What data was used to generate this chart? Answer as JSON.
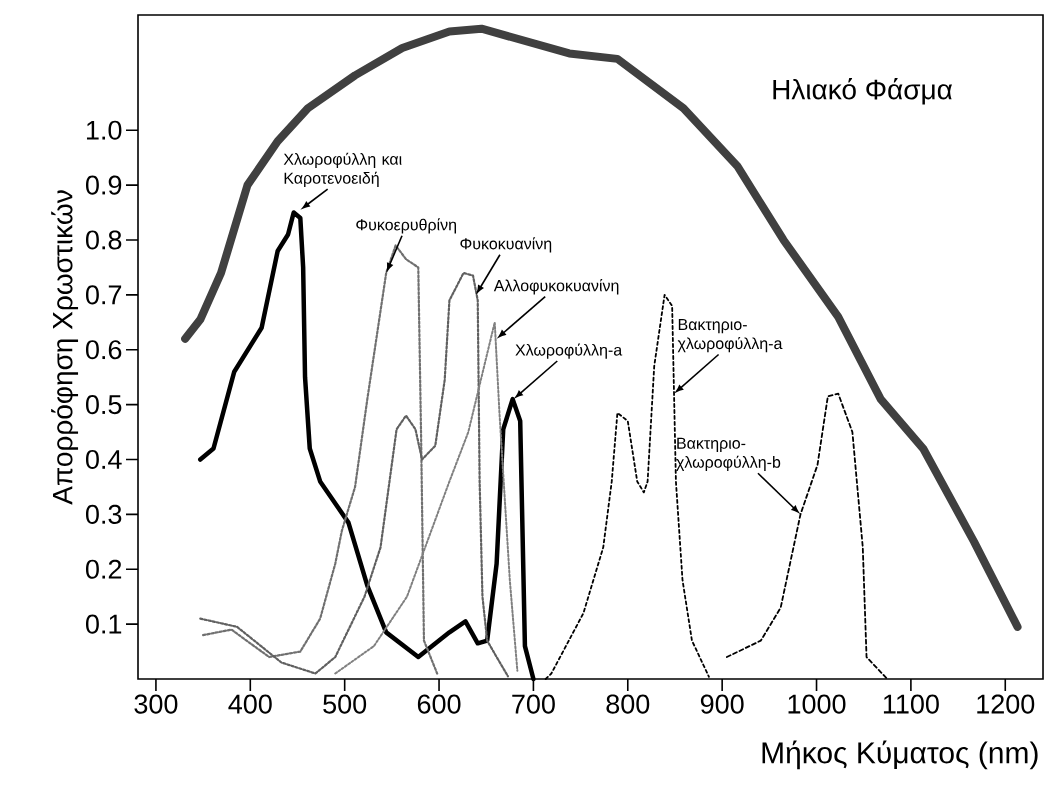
{
  "chart_data": {
    "type": "line",
    "xlabel": "Μήκος Κύματος (nm)",
    "ylabel": "Απορρόφηση Χρωστικών",
    "xlim": [
      281,
      1240
    ],
    "ylim": [
      0,
      1.21
    ],
    "xticks": [
      300,
      400,
      500,
      600,
      700,
      800,
      900,
      1000,
      1100,
      1200
    ],
    "yticks": [
      0.1,
      0.2,
      0.3,
      0.4,
      0.5,
      0.6,
      0.7,
      0.8,
      0.9,
      {
        "value": 1.0,
        "label": "1.0"
      }
    ],
    "series": [
      {
        "color": "#404040",
        "line_style": "solid",
        "x": [
          331,
          347,
          369,
          397,
          429,
          461,
          511,
          561,
          611,
          645,
          738,
          789,
          859,
          916,
          965,
          1023,
          1068,
          1113,
          1167,
          1213
        ],
        "values": [
          0.62,
          0.655,
          0.74,
          0.9,
          0.98,
          1.04,
          1.1,
          1.15,
          1.18,
          1.185,
          1.14,
          1.13,
          1.04,
          0.935,
          0.8,
          0.66,
          0.51,
          0.42,
          0.25,
          0.095
        ]
      },
      {
        "color": "#000000",
        "line_style": "solid",
        "x": [
          347,
          361,
          383,
          412,
          429,
          440,
          446,
          453,
          456,
          458,
          463,
          474,
          504,
          524,
          544,
          578,
          611,
          628,
          641,
          651,
          661,
          668,
          678,
          686,
          691,
          700
        ],
        "values": [
          0.4,
          0.42,
          0.56,
          0.64,
          0.78,
          0.81,
          0.85,
          0.84,
          0.75,
          0.55,
          0.42,
          0.36,
          0.285,
          0.17,
          0.085,
          0.04,
          0.085,
          0.105,
          0.065,
          0.07,
          0.21,
          0.455,
          0.51,
          0.47,
          0.06,
          0
        ]
      },
      {
        "color": "#707070",
        "line_style": "dotted",
        "x": [
          350,
          380,
          420,
          453,
          474,
          490,
          497,
          511,
          524,
          544,
          554,
          565,
          578,
          581,
          584,
          598
        ],
        "values": [
          0.08,
          0.09,
          0.04,
          0.05,
          0.11,
          0.21,
          0.27,
          0.35,
          0.51,
          0.74,
          0.79,
          0.765,
          0.75,
          0.44,
          0.07,
          0.01
        ]
      },
      {
        "color": "#606060",
        "line_style": "dotted",
        "x": [
          347,
          386,
          433,
          469,
          490,
          521,
          538,
          555,
          565,
          575,
          582,
          596,
          606,
          611,
          626,
          636,
          641,
          643,
          646,
          651,
          661,
          673
        ],
        "values": [
          0.11,
          0.095,
          0.03,
          0.01,
          0.04,
          0.15,
          0.24,
          0.455,
          0.48,
          0.455,
          0.4,
          0.425,
          0.545,
          0.69,
          0.74,
          0.735,
          0.69,
          0.36,
          0.15,
          0.07,
          0.04,
          0.005
        ]
      },
      {
        "color": "#808080",
        "line_style": "dotted",
        "x": [
          490,
          531,
          566,
          611,
          631,
          659,
          664,
          675,
          683
        ],
        "values": [
          0.01,
          0.06,
          0.15,
          0.36,
          0.45,
          0.65,
          0.485,
          0.18,
          0.015
        ]
      },
      {
        "color": "#000000",
        "line_style": "dashed",
        "x": [
          713,
          719,
          753,
          774,
          783,
          789,
          800,
          810,
          817,
          821,
          828,
          839,
          847,
          851,
          858,
          868,
          886
        ],
        "values": [
          0,
          0.01,
          0.12,
          0.24,
          0.36,
          0.485,
          0.47,
          0.36,
          0.34,
          0.36,
          0.57,
          0.7,
          0.68,
          0.36,
          0.18,
          0.07,
          0.004
        ]
      },
      {
        "color": "#000000",
        "line_style": "densely dashed",
        "x": [
          905,
          941,
          962,
          983,
          1001,
          1012,
          1023,
          1038,
          1049,
          1053,
          1075
        ],
        "values": [
          0.04,
          0.07,
          0.13,
          0.3,
          0.39,
          0.515,
          0.52,
          0.45,
          0.24,
          0.04,
          0
        ]
      }
    ],
    "annotations": [
      {
        "text": "Χλωροφύλλη και Καροτενοειδή",
        "x": 453,
        "y": 0.855
      },
      {
        "text": "Φυκοερυθρίνη",
        "x": 544,
        "y": 0.74
      },
      {
        "text": "Φυκοκυανίνη",
        "x": 639,
        "y": 0.7
      },
      {
        "text": "Αλλοφυκοκυανίνη",
        "x": 661,
        "y": 0.62
      },
      {
        "text": "Χλωροφύλλη-a",
        "x": 679,
        "y": 0.51
      },
      {
        "text": "Βακτηριο-χλωροφύλλη-a",
        "x": 849,
        "y": 0.52
      },
      {
        "text": "Βακτηριο-χλωροφύλλη-b",
        "x": 983,
        "y": 0.3
      },
      "Ηλιακό Φάσμα"
    ]
  }
}
